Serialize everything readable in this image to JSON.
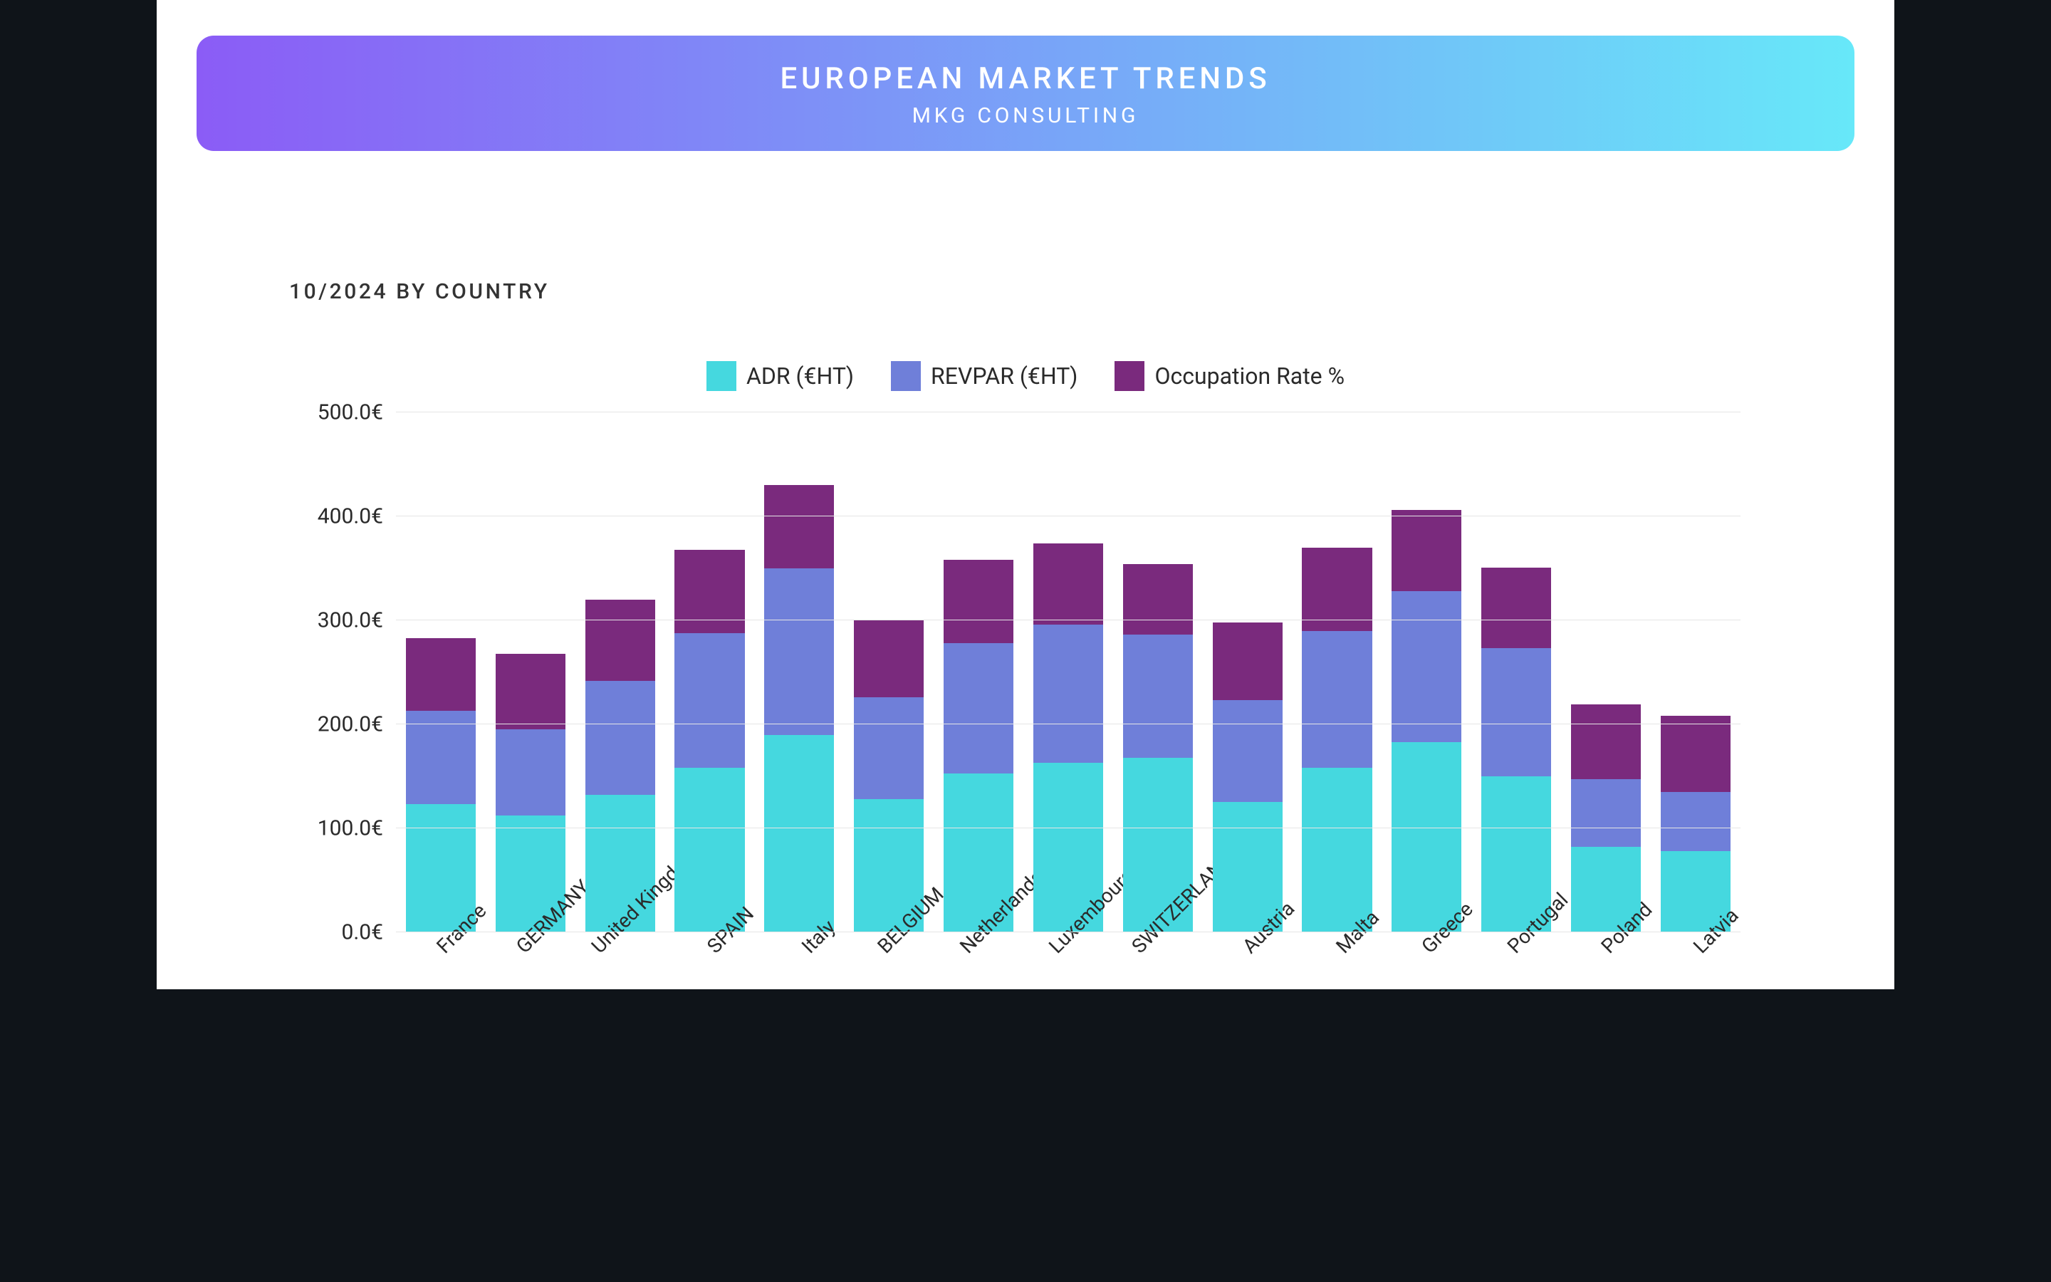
{
  "header": {
    "title": "EUROPEAN MARKET TRENDS",
    "subtitle": "MKG CONSULTING",
    "gradient_from": "#8b5cf6",
    "gradient_to": "#67e8f9"
  },
  "chart": {
    "type": "stacked_bar",
    "subtitle": "10/2024 BY COUNTRY",
    "legend": [
      {
        "label": "ADR (€HT)",
        "color": "#45d8df"
      },
      {
        "label": "REVPAR (€HT)",
        "color": "#6f7fd9"
      },
      {
        "label": "Occupation Rate %",
        "color": "#7a2a7d"
      }
    ],
    "y_axis": {
      "min": 0,
      "max": 500,
      "ticks": [
        0,
        100,
        200,
        300,
        400,
        500
      ],
      "tick_labels": [
        "0.0€",
        "100.0€",
        "200.0€",
        "300.0€",
        "400.0€",
        "500.0€"
      ],
      "grid_color": "#e5e5e5",
      "label_fontsize": 30
    },
    "x_label_fontsize": 28,
    "x_label_rotation_deg": -45,
    "series_colors": {
      "adr": "#45d8df",
      "revpar": "#6f7fd9",
      "occ": "#7a2a7d"
    },
    "categories": [
      "France",
      "GERMANY",
      "United Kingdom",
      "SPAIN",
      "Italy",
      "BELGIUM",
      "Netherlands",
      "Luxembourg",
      "SWITZERLAND",
      "Austria",
      "Malta",
      "Greece",
      "Portugal",
      "Poland",
      "Latvia"
    ],
    "data": [
      {
        "adr": 123,
        "revpar": 90,
        "occ": 70
      },
      {
        "adr": 112,
        "revpar": 83,
        "occ": 73
      },
      {
        "adr": 132,
        "revpar": 110,
        "occ": 78
      },
      {
        "adr": 158,
        "revpar": 130,
        "occ": 80
      },
      {
        "adr": 190,
        "revpar": 160,
        "occ": 80
      },
      {
        "adr": 128,
        "revpar": 98,
        "occ": 75
      },
      {
        "adr": 153,
        "revpar": 125,
        "occ": 80
      },
      {
        "adr": 163,
        "revpar": 133,
        "occ": 78
      },
      {
        "adr": 168,
        "revpar": 118,
        "occ": 68
      },
      {
        "adr": 125,
        "revpar": 98,
        "occ": 75
      },
      {
        "adr": 158,
        "revpar": 132,
        "occ": 80
      },
      {
        "adr": 183,
        "revpar": 145,
        "occ": 78
      },
      {
        "adr": 150,
        "revpar": 123,
        "occ": 78
      },
      {
        "adr": 82,
        "revpar": 65,
        "occ": 72
      },
      {
        "adr": 78,
        "revpar": 57,
        "occ": 73
      }
    ],
    "background_color": "#ffffff"
  },
  "page": {
    "outer_background": "#0f1419"
  }
}
